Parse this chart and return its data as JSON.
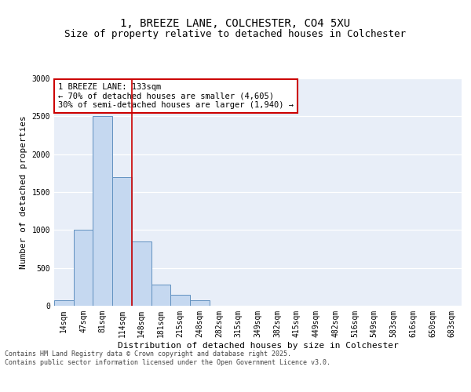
{
  "title_line1": "1, BREEZE LANE, COLCHESTER, CO4 5XU",
  "title_line2": "Size of property relative to detached houses in Colchester",
  "xlabel": "Distribution of detached houses by size in Colchester",
  "ylabel": "Number of detached properties",
  "categories": [
    "14sqm",
    "47sqm",
    "81sqm",
    "114sqm",
    "148sqm",
    "181sqm",
    "215sqm",
    "248sqm",
    "282sqm",
    "315sqm",
    "349sqm",
    "382sqm",
    "415sqm",
    "449sqm",
    "482sqm",
    "516sqm",
    "549sqm",
    "583sqm",
    "616sqm",
    "650sqm",
    "683sqm"
  ],
  "values": [
    75,
    1000,
    2500,
    1700,
    850,
    280,
    150,
    75,
    0,
    0,
    0,
    0,
    0,
    0,
    0,
    0,
    0,
    0,
    0,
    0,
    0
  ],
  "bar_color": "#c5d8f0",
  "bar_edgecolor": "#6090c0",
  "vline_color": "#cc0000",
  "annotation_text": "1 BREEZE LANE: 133sqm\n← 70% of detached houses are smaller (4,605)\n30% of semi-detached houses are larger (1,940) →",
  "annotation_box_color": "#cc0000",
  "ylim": [
    0,
    3000
  ],
  "yticks": [
    0,
    500,
    1000,
    1500,
    2000,
    2500,
    3000
  ],
  "background_color": "#e8eef8",
  "grid_color": "#ffffff",
  "footer_text": "Contains HM Land Registry data © Crown copyright and database right 2025.\nContains public sector information licensed under the Open Government Licence v3.0.",
  "title_fontsize": 10,
  "subtitle_fontsize": 9,
  "axis_label_fontsize": 8,
  "tick_fontsize": 7,
  "annotation_fontsize": 7.5,
  "footer_fontsize": 6
}
